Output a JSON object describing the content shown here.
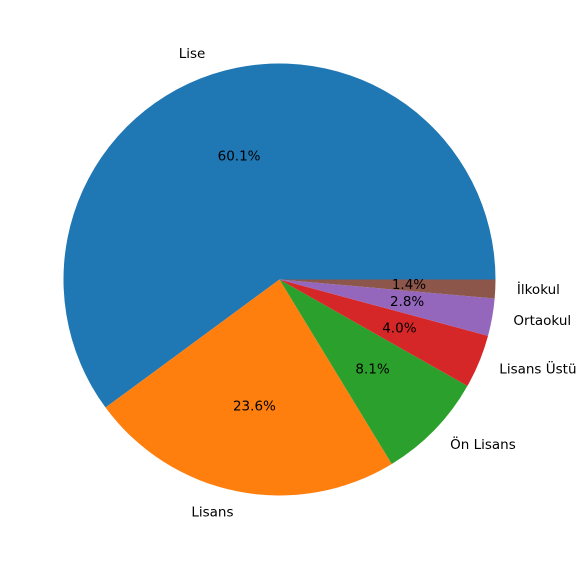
{
  "chart_data": {
    "type": "pie",
    "title": "",
    "start_angle_deg": 0,
    "direction": "counterclockwise",
    "categories": [
      "Lise",
      "Lisans",
      "Ön Lisans",
      "Lisans Üstü",
      "Ortaokul",
      "İlkokul"
    ],
    "values": [
      60.1,
      23.6,
      8.1,
      4.0,
      2.8,
      1.4
    ],
    "percent_labels": [
      "60.1%",
      "23.6%",
      "8.1%",
      "4.0%",
      "2.8%",
      "1.4%"
    ],
    "colors": [
      "#1f77b4",
      "#ff7f0e",
      "#2ca02c",
      "#d62728",
      "#9467bd",
      "#8c564b"
    ],
    "legend": "none"
  }
}
